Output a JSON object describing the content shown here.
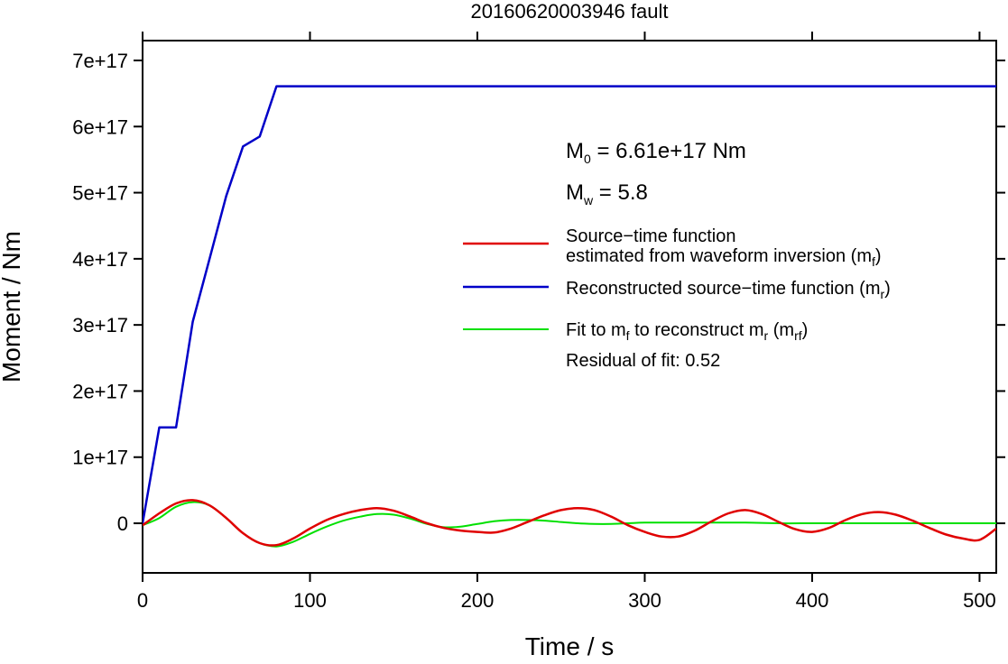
{
  "chart_data": {
    "type": "line",
    "title": "20160620003946 fault",
    "xlabel": "Time / s",
    "ylabel": "Moment / Nm",
    "xlim": [
      0,
      510
    ],
    "ylim": [
      -7.5e+16,
      7.3e+17
    ],
    "xticks": [
      0,
      100,
      200,
      300,
      400,
      500
    ],
    "xtick_labels": [
      "0",
      "100",
      "200",
      "300",
      "400",
      "500"
    ],
    "yticks": [
      0,
      1e+17,
      2e+17,
      3e+17,
      4e+17,
      5e+17,
      6e+17,
      7e+17
    ],
    "ytick_labels": [
      "0",
      "1e+17",
      "2e+17",
      "3e+17",
      "4e+17",
      "5e+17",
      "6e+17",
      "7e+17"
    ],
    "grid": false,
    "annotations": {
      "m0_prefix": "M",
      "m0_sub": "0",
      "m0_value": " = 6.61e+17 Nm",
      "mw_prefix": "M",
      "mw_sub": "w",
      "mw_value": " = 5.8",
      "residual": "Residual of fit: 0.52"
    },
    "legend_placement": "center-right",
    "series": [
      {
        "key": "mf",
        "legend_line1": "Source−time function",
        "legend_line2a": "estimated from waveform inversion (m",
        "legend_line2_sub": "f",
        "legend_line2b": ")",
        "color": "#e00000",
        "x": [
          0,
          10,
          20,
          30,
          40,
          50,
          60,
          70,
          80,
          90,
          100,
          110,
          120,
          130,
          140,
          150,
          160,
          170,
          180,
          190,
          200,
          210,
          220,
          230,
          240,
          250,
          260,
          270,
          280,
          290,
          300,
          310,
          320,
          330,
          340,
          350,
          360,
          370,
          380,
          390,
          400,
          410,
          420,
          430,
          440,
          450,
          460,
          470,
          480,
          490,
          500,
          510
        ],
        "y": [
          -3000000000000000.0,
          1.5e+16,
          3e+16,
          3.5e+16,
          2.7e+16,
          8000000000000000.0,
          -1.5e+16,
          -3e+16,
          -3.3e+16,
          -2.3e+16,
          -8000000000000000.0,
          5000000000000000.0,
          1.4e+16,
          2e+16,
          2.3e+16,
          1.9e+16,
          1e+16,
          0.0,
          -7000000000000000.0,
          -1.1e+16,
          -1.3e+16,
          -1.4e+16,
          -8000000000000000.0,
          2000000000000000.0,
          1.2e+16,
          2e+16,
          2.3e+16,
          2e+16,
          1e+16,
          -3000000000000000.0,
          -1.3e+16,
          -2e+16,
          -2e+16,
          -1.1e+16,
          3000000000000000.0,
          1.5e+16,
          2e+16,
          1.4e+16,
          2000000000000000.0,
          -9000000000000000.0,
          -1.3e+16,
          -7000000000000000.0,
          5000000000000000.0,
          1.4e+16,
          1.7e+16,
          1.3e+16,
          4000000000000000.0,
          -7000000000000000.0,
          -1.7e+16,
          -2.3e+16,
          -2.5e+16,
          -8000000000000000.0
        ]
      },
      {
        "key": "mr",
        "legend_line1a": "Reconstructed source−time function (m",
        "legend_line1_sub": "r",
        "legend_line1b": ")",
        "color": "#0000c8",
        "x": [
          0,
          10,
          20,
          30,
          40,
          50,
          60,
          70,
          80,
          510
        ],
        "y": [
          0,
          1.45e+17,
          1.45e+17,
          3.05e+17,
          4e+17,
          4.95e+17,
          5.7e+17,
          5.85e+17,
          6.61e+17,
          6.61e+17
        ]
      },
      {
        "key": "mrf",
        "legend_line1a": "Fit to m",
        "legend_line1_sub1": "f",
        "legend_line1b": " to reconstruct m",
        "legend_line1_sub2": "r",
        "legend_line1c": " (m",
        "legend_line1_sub3": "rf",
        "legend_line1d": ")",
        "color": "#00e000",
        "x": [
          0,
          10,
          20,
          30,
          40,
          50,
          60,
          70,
          80,
          90,
          100,
          110,
          120,
          130,
          140,
          150,
          160,
          170,
          180,
          190,
          200,
          210,
          220,
          230,
          240,
          250,
          260,
          270,
          280,
          290,
          300,
          320,
          340,
          360,
          380,
          400,
          420,
          440,
          460,
          480,
          510
        ],
        "y": [
          -3000000000000000.0,
          8000000000000000.0,
          2.5e+16,
          3.2e+16,
          2.7e+16,
          8000000000000000.0,
          -1.5e+16,
          -3e+16,
          -3.5e+16,
          -2.8e+16,
          -1.6e+16,
          -5000000000000000.0,
          4000000000000000.0,
          1e+16,
          1.4e+16,
          1.3e+16,
          7000000000000000.0,
          -1000000000000000.0,
          -6000000000000000.0,
          -5000000000000000.0,
          -1000000000000000.0,
          3000000000000000.0,
          5000000000000000.0,
          5000000000000000.0,
          4000000000000000.0,
          2000000000000000.0,
          0.0,
          -1000000000000000.0,
          -1000000000000000.0,
          0.0,
          1000000000000000.0,
          1000000000000000.0,
          1000000000000000.0,
          1000000000000000.0,
          0.0,
          0.0,
          0.0,
          0.0,
          0.0,
          0.0,
          0.0
        ]
      }
    ]
  }
}
